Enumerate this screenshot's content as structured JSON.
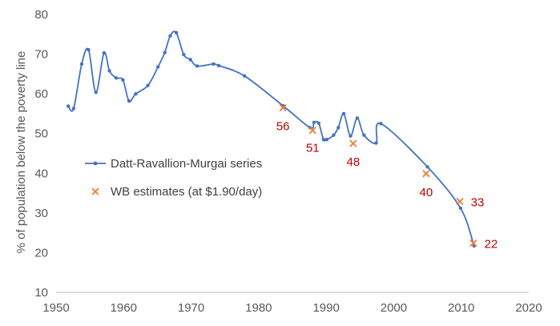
{
  "chart_data": {
    "type": "line",
    "title": "",
    "xlabel": "",
    "ylabel": "% of population below the poverty line",
    "xlim": [
      1950,
      2020
    ],
    "ylim": [
      10,
      80
    ],
    "xticks": [
      "1950",
      "1960",
      "1970",
      "1980",
      "1990",
      "2000",
      "2010",
      "2020"
    ],
    "yticks": [
      "10",
      "20",
      "30",
      "40",
      "50",
      "60",
      "70",
      "80"
    ],
    "grid": false,
    "legend_position": "left",
    "colors": {
      "line": "#4472C4",
      "marker": "#ED7D31",
      "label": "#C00000",
      "axis": "#BFBFBF",
      "text": "#595959"
    },
    "series": [
      {
        "name": "Datt-Ravallion-Murgai series",
        "kind": "line-markers",
        "x": [
          1951.8,
          1952.6,
          1953.8,
          1954.8,
          1955.9,
          1957.1,
          1957.9,
          1958.9,
          1959.9,
          1960.8,
          1961.8,
          1963.6,
          1965.1,
          1966.1,
          1966.9,
          1967.8,
          1968.9,
          1969.9,
          1970.9,
          1973.3,
          1974.1,
          1977.9,
          1983.6,
          1987.6,
          1988.2,
          1988.9,
          1989.6,
          1990.1,
          1991.1,
          1991.8,
          1992.6,
          1993.6,
          1994.6,
          1995.6,
          1997.4,
          1998.1,
          2005.0,
          2009.9,
          2011.9
        ],
        "y": [
          56.9,
          56.3,
          67.5,
          71.1,
          60.4,
          70.3,
          65.8,
          64.0,
          63.5,
          58.2,
          60.0,
          62.1,
          66.8,
          70.4,
          74.6,
          75.4,
          69.9,
          68.6,
          67.0,
          67.5,
          67.1,
          64.5,
          57.0,
          51.5,
          52.8,
          52.6,
          48.5,
          48.5,
          49.6,
          51.5,
          55.0,
          49.4,
          53.9,
          49.6,
          47.6,
          52.5,
          41.6,
          31.2,
          21.7
        ]
      },
      {
        "name": "WB estimates (at $1.90/day)",
        "kind": "markers",
        "x": [
          1983.6,
          1988.0,
          1994.0,
          2004.8,
          2009.8,
          2011.8
        ],
        "y": [
          56.5,
          50.8,
          47.5,
          39.9,
          32.9,
          22.4
        ],
        "labels": [
          "56",
          "51",
          "48",
          "40",
          "33",
          "22"
        ]
      }
    ]
  }
}
